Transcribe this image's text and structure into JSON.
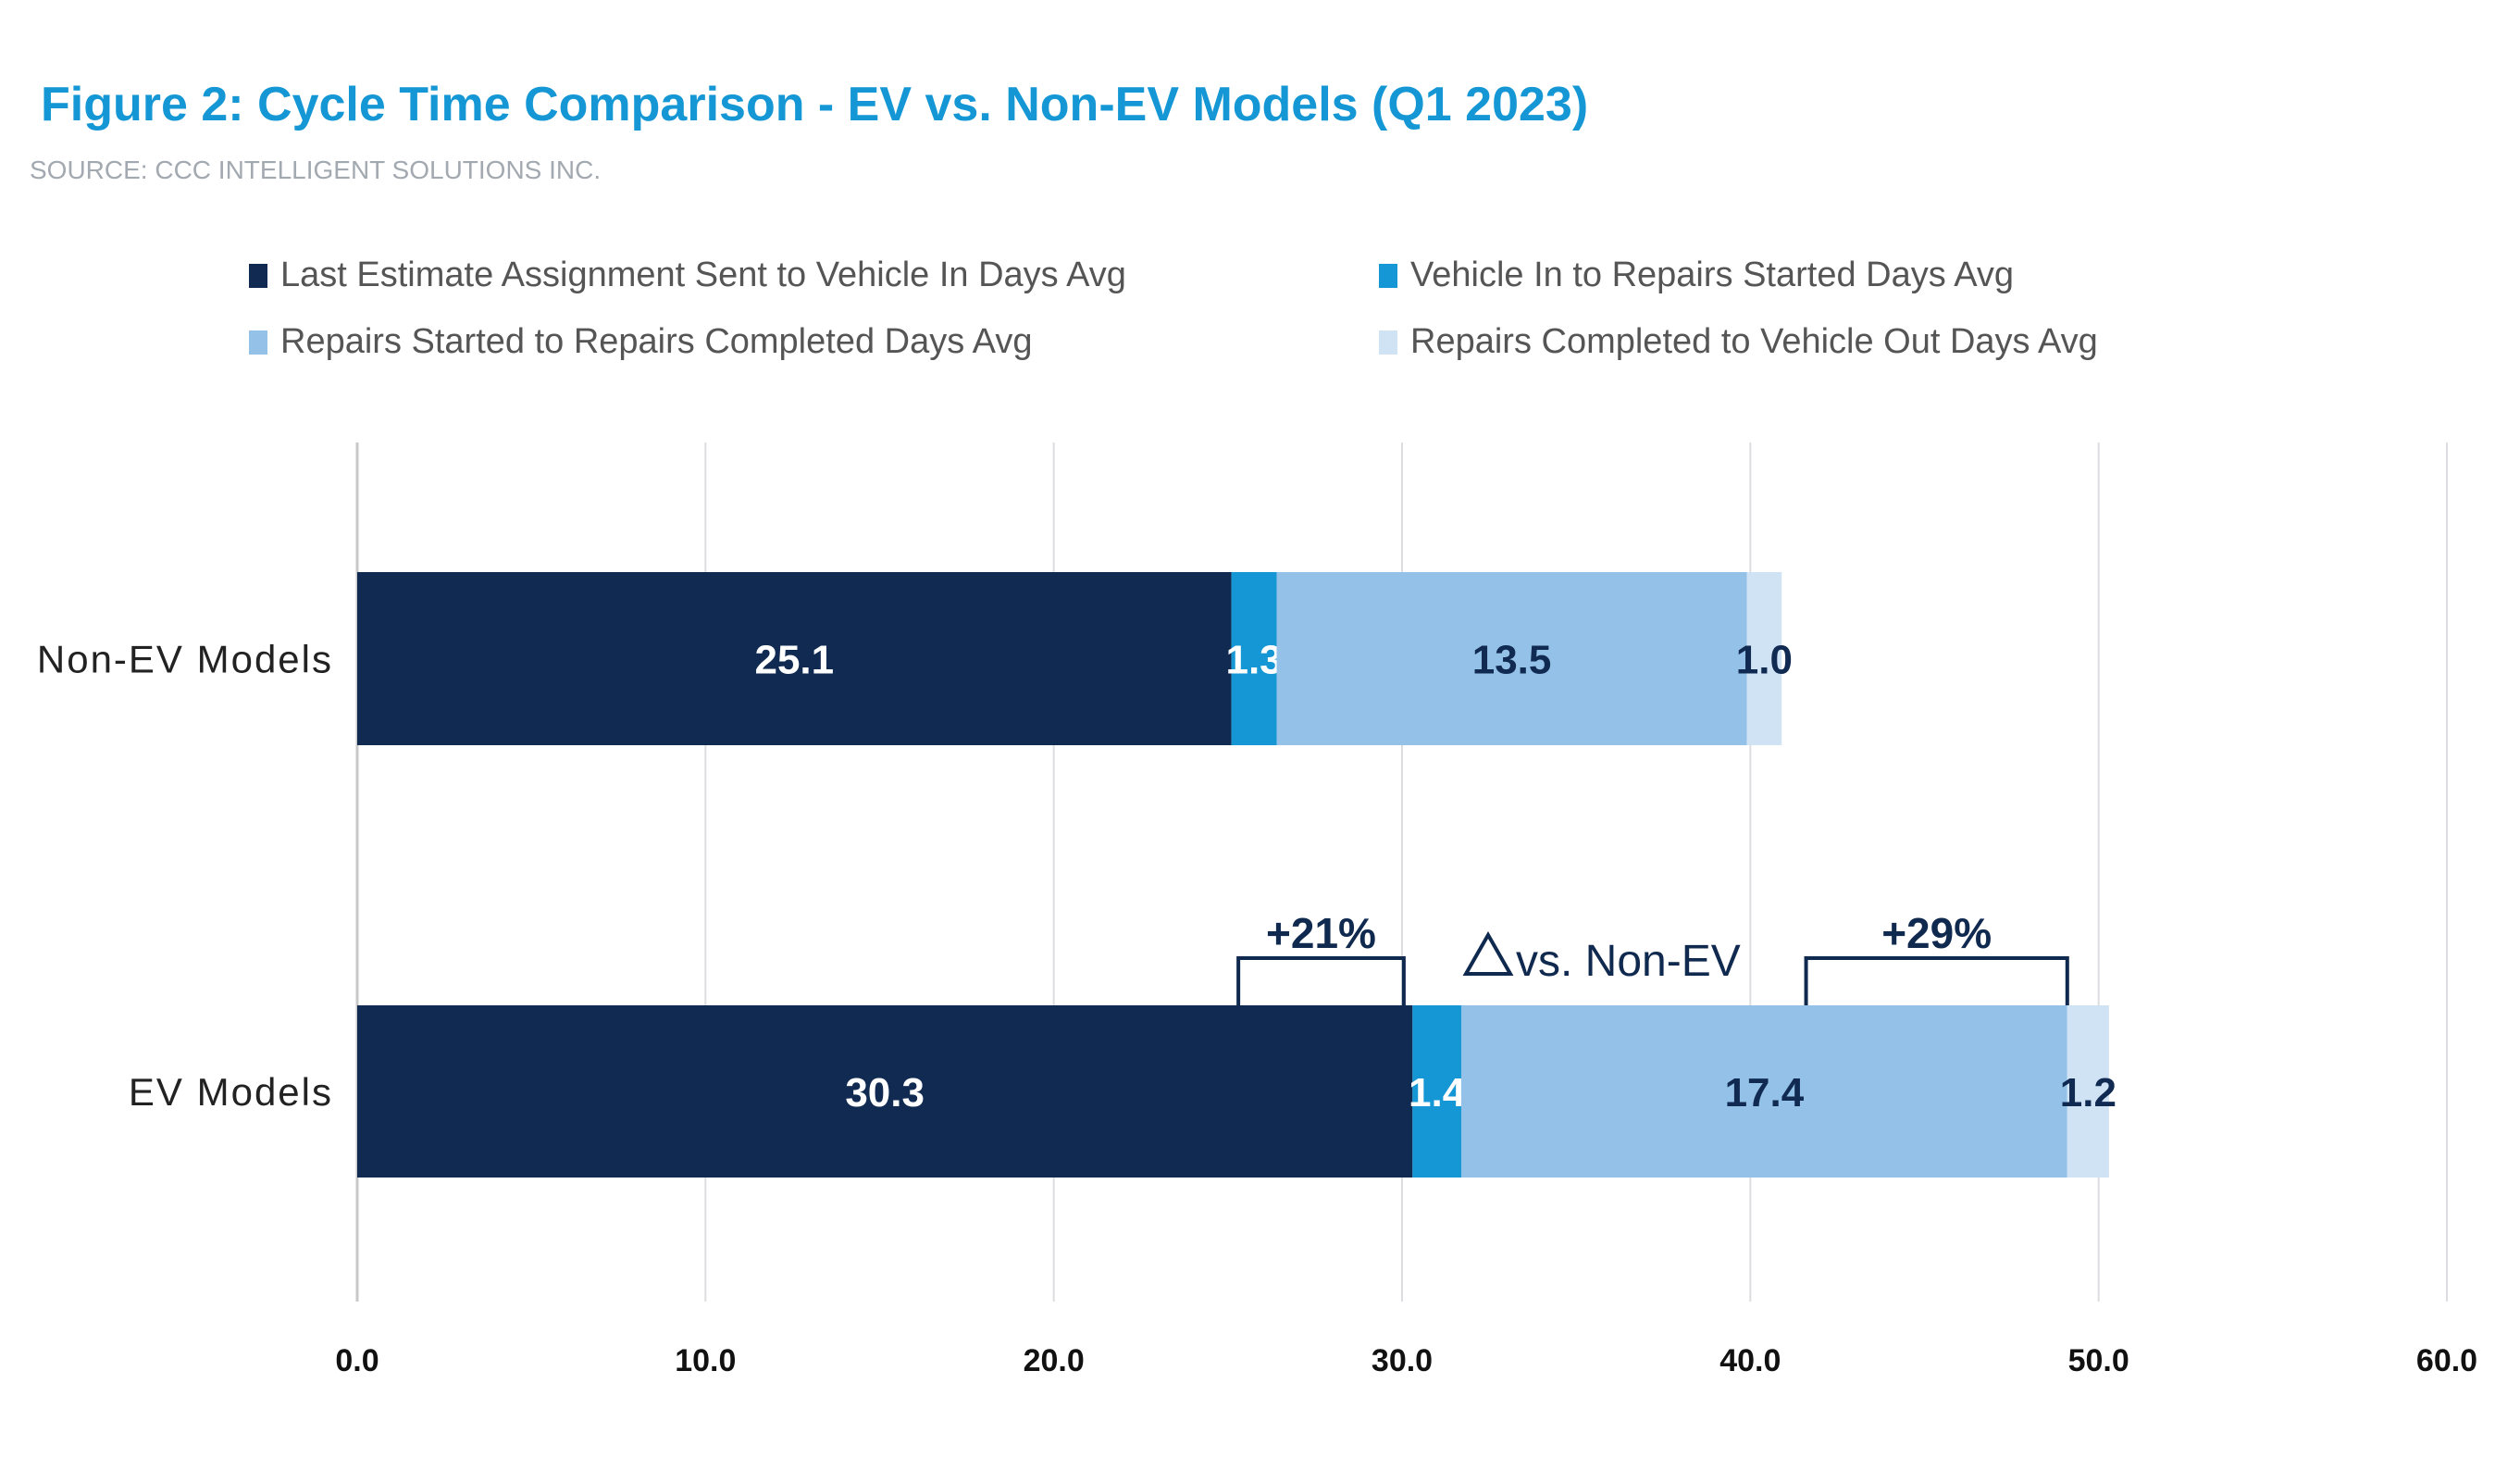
{
  "title": "Figure 2: Cycle Time Comparison - EV vs. Non-EV Models (Q1 2023)",
  "source": "SOURCE: CCC INTELLIGENT SOLUTIONS INC.",
  "chart_data": {
    "type": "bar",
    "orientation": "horizontal",
    "stacked": true,
    "categories": [
      "Non-EV Models",
      "EV Models"
    ],
    "series": [
      {
        "name": "Last Estimate Assignment Sent to Vehicle In Days Avg",
        "color": "#112a52",
        "label_color": "#ffffff",
        "values": [
          25.1,
          30.3
        ]
      },
      {
        "name": "Vehicle In to Repairs Started Days Avg",
        "color": "#1497d4",
        "label_color": "#ffffff",
        "values": [
          1.3,
          1.4
        ]
      },
      {
        "name": "Repairs Started to Repairs Completed Days Avg",
        "color": "#94c1e7",
        "label_color": "#112a52",
        "values": [
          13.5,
          17.4
        ]
      },
      {
        "name": "Repairs Completed to Vehicle Out Days Avg",
        "color": "#d0e3f5",
        "label_color": "#112a52",
        "values": [
          1.0,
          1.2
        ]
      }
    ],
    "xlim": [
      0,
      60
    ],
    "xticks": [
      "0.0",
      "10.0",
      "20.0",
      "30.0",
      "40.0",
      "50.0",
      "60.0"
    ],
    "grid": true,
    "legend_position": "top",
    "annotations": {
      "delta_label": "vs. Non-EV",
      "brackets": [
        {
          "label": "+21%",
          "range": [
            25.3,
            30.05
          ]
        },
        {
          "label": "+29%",
          "range": [
            41.6,
            49.1
          ]
        }
      ]
    }
  }
}
